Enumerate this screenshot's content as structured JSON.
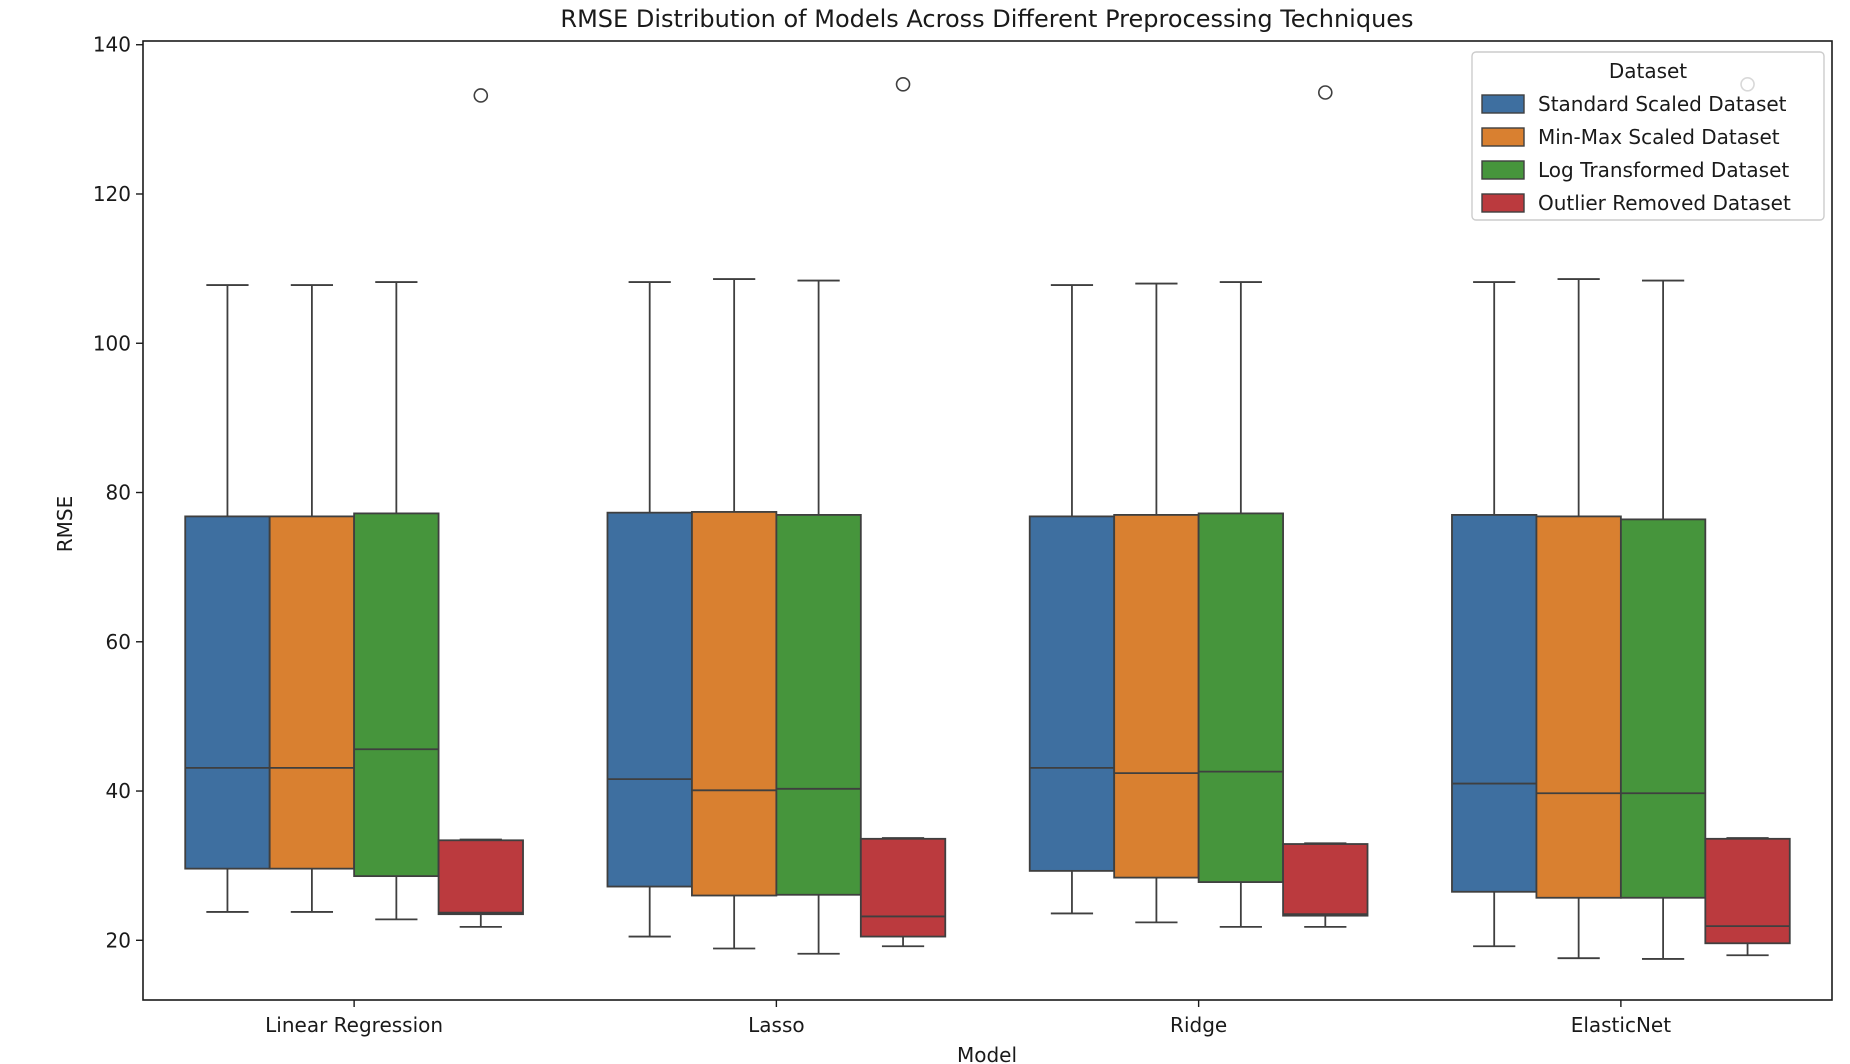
{
  "chart_data": {
    "type": "box",
    "title": "RMSE Distribution of Models Across Different Preprocessing Techniques",
    "xlabel": "Model",
    "ylabel": "RMSE",
    "ylim": [
      12,
      140.5
    ],
    "yticks": [
      20,
      40,
      60,
      80,
      100,
      120,
      140
    ],
    "grid": false,
    "categories": [
      "Linear Regression",
      "Lasso",
      "Ridge",
      "ElasticNet"
    ],
    "legend": {
      "title": "Dataset",
      "placement": "top-right"
    },
    "series": [
      {
        "name": "Standard Scaled Dataset",
        "color": "#3e6fa0",
        "boxes": [
          {
            "whisker_low": 23.8,
            "q1": 29.6,
            "median": 43.1,
            "q3": 76.8,
            "whisker_high": 107.8,
            "outliers": []
          },
          {
            "whisker_low": 20.5,
            "q1": 27.2,
            "median": 41.6,
            "q3": 77.3,
            "whisker_high": 108.2,
            "outliers": []
          },
          {
            "whisker_low": 23.6,
            "q1": 29.3,
            "median": 43.1,
            "q3": 76.8,
            "whisker_high": 107.8,
            "outliers": []
          },
          {
            "whisker_low": 19.2,
            "q1": 26.5,
            "median": 41.0,
            "q3": 77.0,
            "whisker_high": 108.2,
            "outliers": []
          }
        ]
      },
      {
        "name": "Min-Max Scaled Dataset",
        "color": "#d98030",
        "boxes": [
          {
            "whisker_low": 23.8,
            "q1": 29.6,
            "median": 43.1,
            "q3": 76.8,
            "whisker_high": 107.8,
            "outliers": []
          },
          {
            "whisker_low": 18.9,
            "q1": 26.0,
            "median": 40.1,
            "q3": 77.4,
            "whisker_high": 108.6,
            "outliers": []
          },
          {
            "whisker_low": 22.4,
            "q1": 28.4,
            "median": 42.4,
            "q3": 77.0,
            "whisker_high": 108.0,
            "outliers": []
          },
          {
            "whisker_low": 17.6,
            "q1": 25.7,
            "median": 39.7,
            "q3": 76.8,
            "whisker_high": 108.6,
            "outliers": []
          }
        ]
      },
      {
        "name": "Log Transformed Dataset",
        "color": "#46953c",
        "boxes": [
          {
            "whisker_low": 22.8,
            "q1": 28.6,
            "median": 45.6,
            "q3": 77.2,
            "whisker_high": 108.2,
            "outliers": []
          },
          {
            "whisker_low": 18.2,
            "q1": 26.1,
            "median": 40.3,
            "q3": 77.0,
            "whisker_high": 108.4,
            "outliers": []
          },
          {
            "whisker_low": 21.8,
            "q1": 27.8,
            "median": 42.6,
            "q3": 77.2,
            "whisker_high": 108.2,
            "outliers": []
          },
          {
            "whisker_low": 17.5,
            "q1": 25.7,
            "median": 39.7,
            "q3": 76.4,
            "whisker_high": 108.4,
            "outliers": []
          }
        ]
      },
      {
        "name": "Outlier Removed Dataset",
        "color": "#bb3a3e",
        "boxes": [
          {
            "whisker_low": 21.8,
            "q1": 23.5,
            "median": 23.7,
            "q3": 33.4,
            "whisker_high": 33.5,
            "outliers": [
              133.2
            ]
          },
          {
            "whisker_low": 19.2,
            "q1": 20.5,
            "median": 23.2,
            "q3": 33.6,
            "whisker_high": 33.7,
            "outliers": [
              134.7
            ]
          },
          {
            "whisker_low": 21.8,
            "q1": 23.3,
            "median": 23.5,
            "q3": 32.9,
            "whisker_high": 33.0,
            "outliers": [
              133.6
            ]
          },
          {
            "whisker_low": 18.0,
            "q1": 19.6,
            "median": 21.9,
            "q3": 33.6,
            "whisker_high": 33.7,
            "outliers": [
              134.7
            ]
          }
        ]
      }
    ]
  }
}
